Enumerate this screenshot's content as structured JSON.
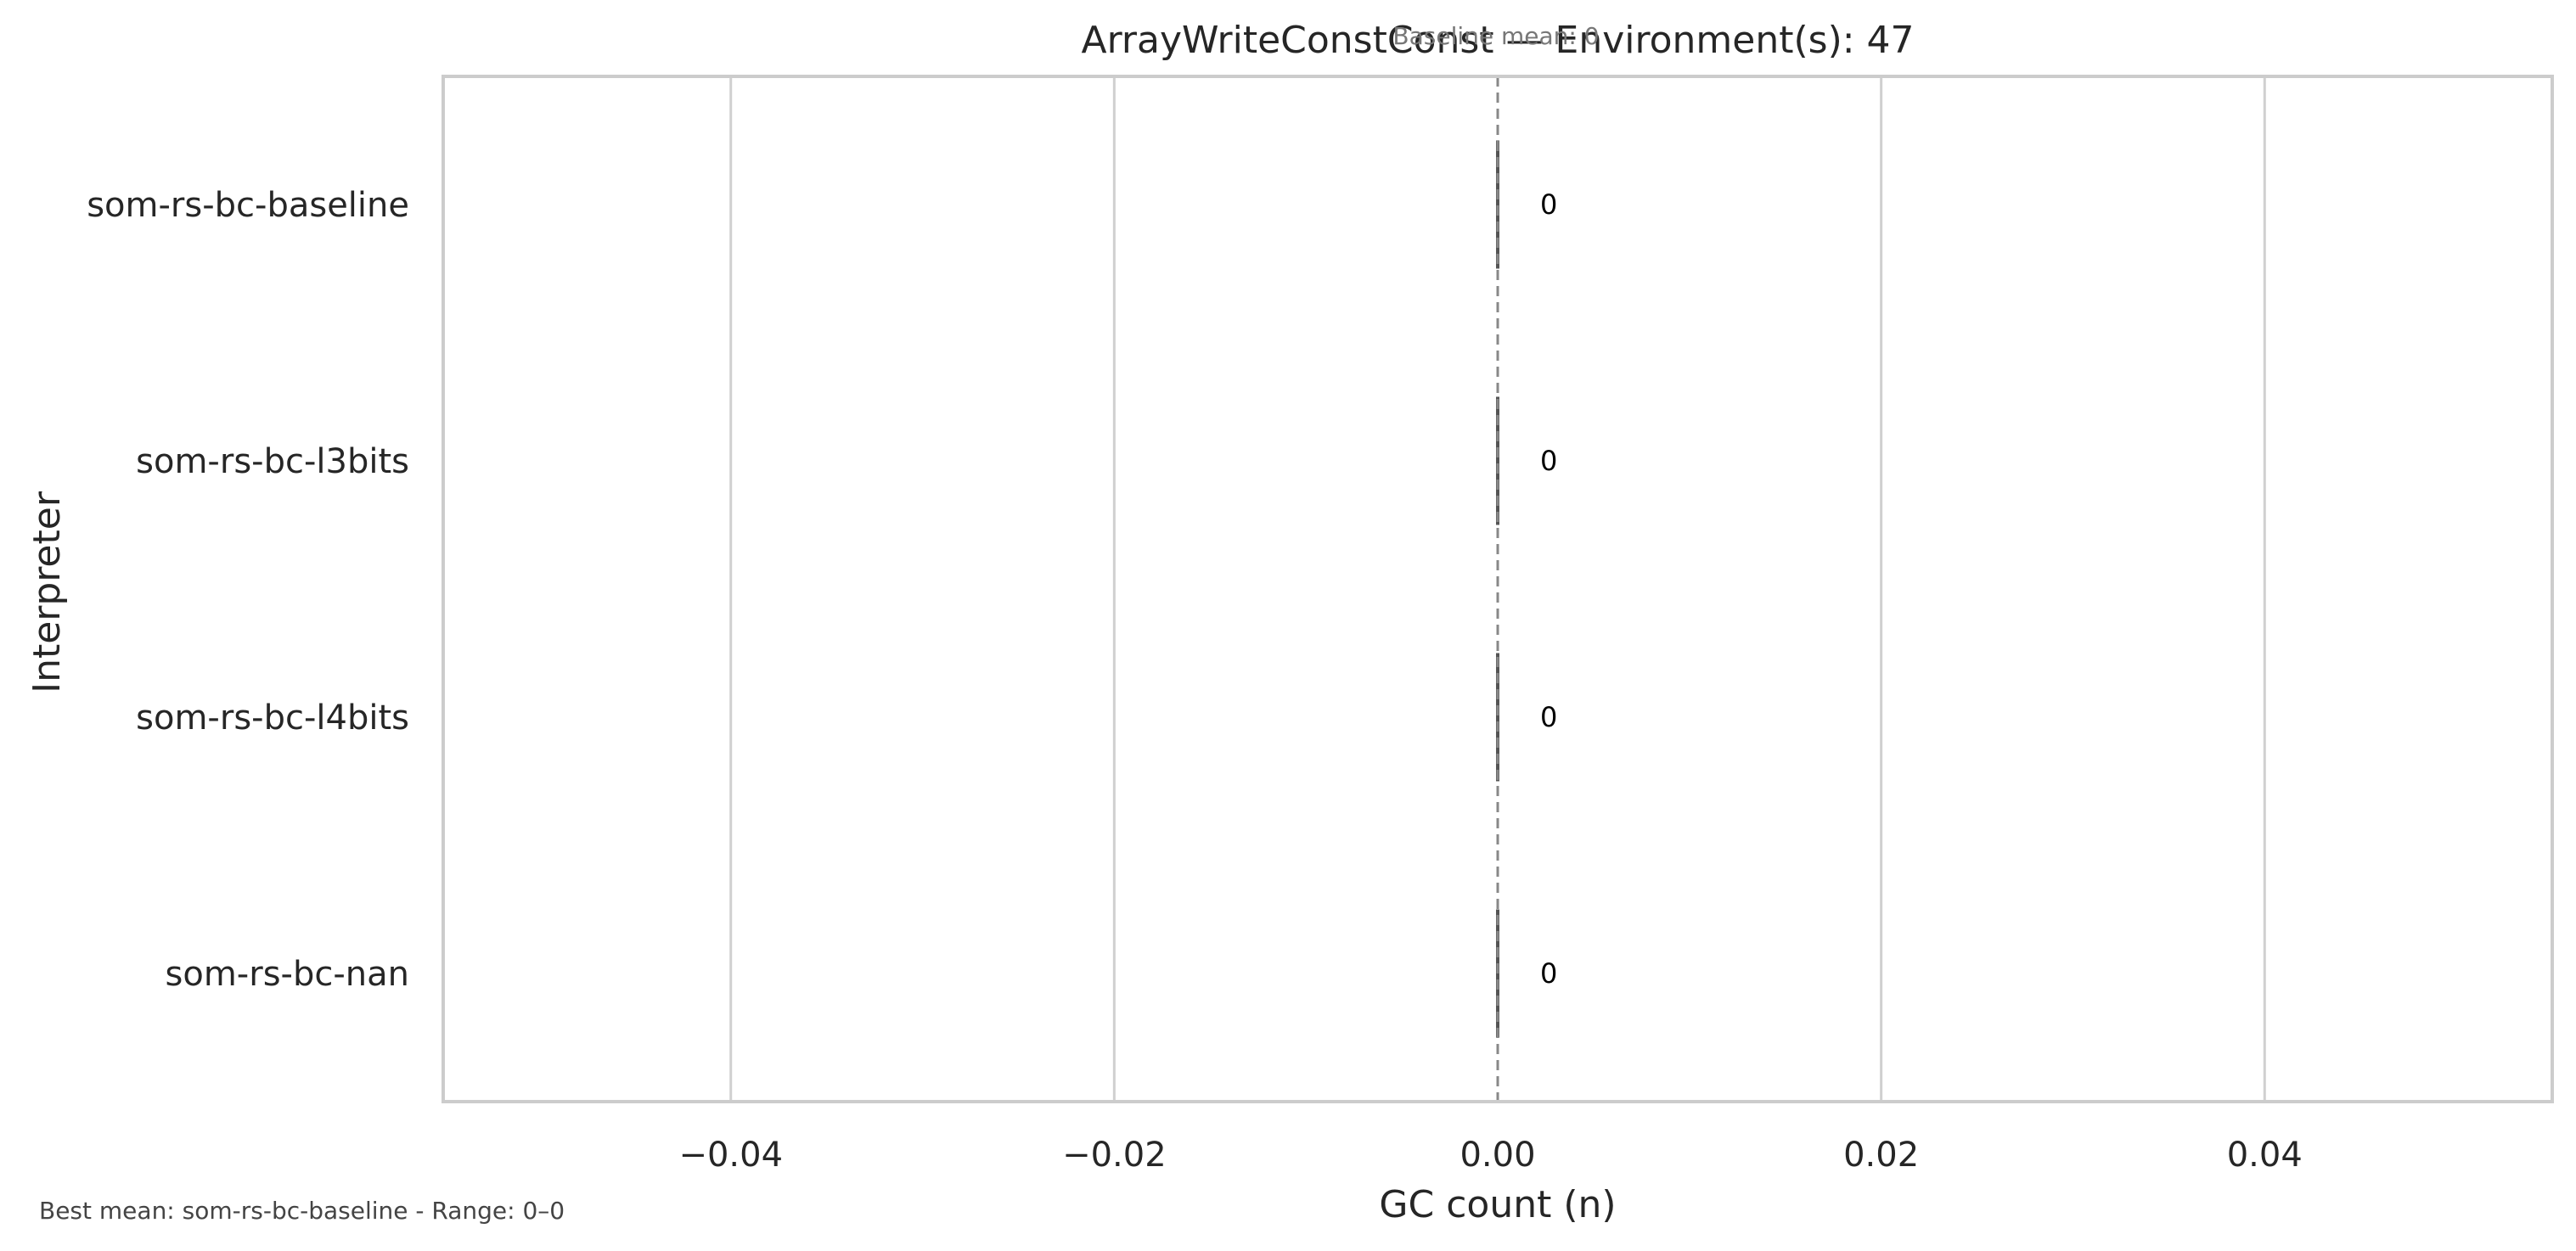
{
  "chart_data": {
    "type": "box",
    "title": "ArrayWriteConstConst — Environment(s): 47",
    "xlabel": "GC count (n)",
    "ylabel": "Interpreter",
    "xlim": [
      -0.055,
      0.055
    ],
    "x_ticks": [
      -0.04,
      -0.02,
      0.0,
      0.02,
      0.04
    ],
    "x_tick_labels": [
      "−0.04",
      "−0.02",
      "0.00",
      "0.02",
      "0.04"
    ],
    "categories": [
      "som-rs-bc-baseline",
      "som-rs-bc-l3bits",
      "som-rs-bc-l4bits",
      "som-rs-bc-nan"
    ],
    "values": [
      0,
      0,
      0,
      0
    ],
    "data_labels": [
      "0",
      "0",
      "0",
      "0"
    ],
    "baseline": {
      "value": 0,
      "label": "Baseline mean: 0"
    },
    "grid": "vertical",
    "footer": "Best mean: som-rs-bc-baseline - Range: 0–0",
    "colors": {
      "grid": "#d0d0d0",
      "frame": "#cccccc",
      "box": "#555555",
      "baseline": "#888888",
      "text": "#262626"
    }
  }
}
